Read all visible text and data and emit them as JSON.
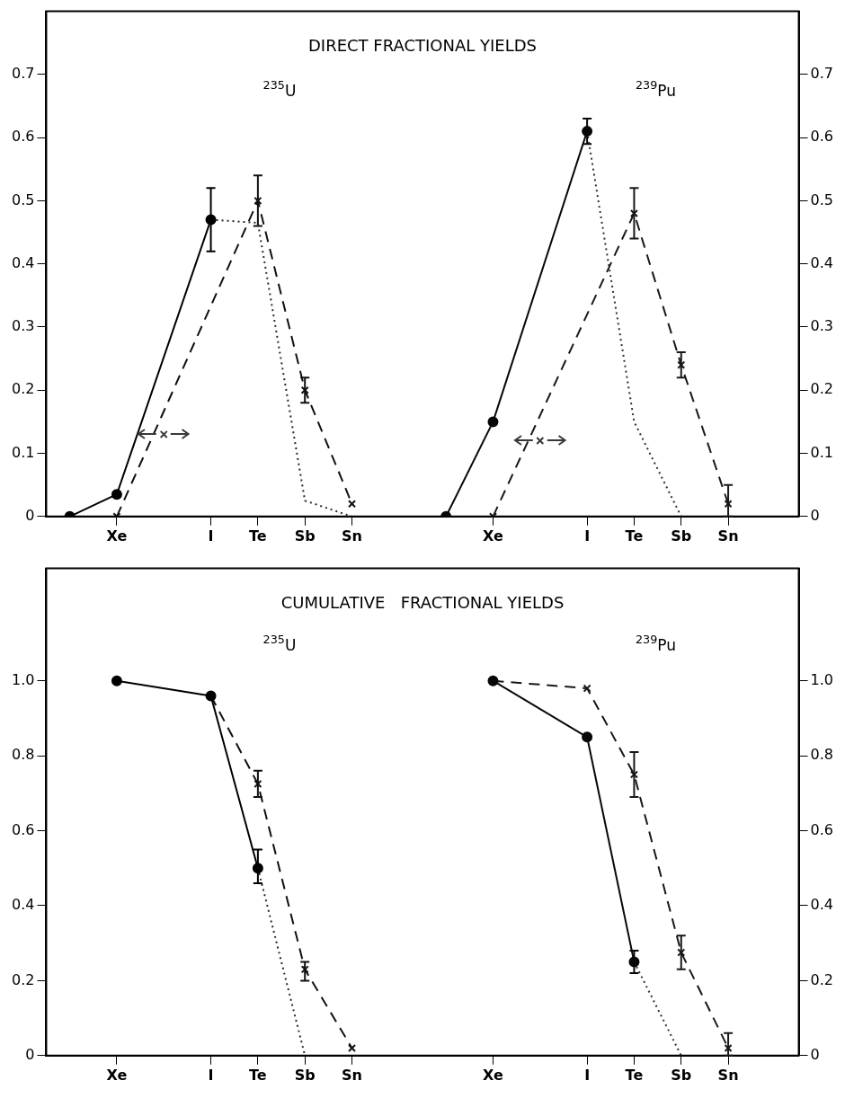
{
  "chart_data": [
    {
      "type": "line",
      "title": "DIRECT FRACTIONAL YIELDS",
      "categories": [
        null,
        "Xe",
        null,
        "I",
        "Te",
        "Sb",
        "Sn",
        null,
        null,
        "Xe",
        null,
        "I",
        "Te",
        "Sb",
        "Sn",
        null
      ],
      "ylim": [
        0,
        0.8
      ],
      "yticks": [
        0,
        0.1,
        0.2,
        0.3,
        0.4,
        0.5,
        0.6,
        0.7
      ],
      "y2lim": [
        0,
        0.8
      ],
      "y2ticks": [
        0,
        0.1,
        0.2,
        0.3,
        0.4,
        0.5,
        0.6,
        0.7
      ],
      "annotations": [
        "$^{235}$U",
        "$^{239}$Pu"
      ],
      "series": [
        {
          "type": "line",
          "color": "#000000",
          "line_style": "solid",
          "marker": "circle",
          "values": [
            0,
            0.035,
            null,
            0.47,
            null,
            null,
            null,
            null,
            null,
            null,
            null,
            null,
            null,
            null,
            null,
            null
          ],
          "errors": [
            null,
            null,
            null,
            [
              0.42,
              0.52
            ],
            null,
            null,
            null,
            null,
            null,
            null,
            null,
            null,
            null,
            null,
            null,
            null
          ]
        },
        {
          "type": "line",
          "color": "#282828",
          "line_style": "dotted",
          "marker": "none",
          "values": [
            null,
            null,
            null,
            0.47,
            0.465,
            0.025,
            0,
            null,
            null,
            null,
            null,
            null,
            null,
            null,
            null,
            null
          ]
        },
        {
          "type": "line",
          "color": "#101010",
          "line_style": "dashed",
          "marker": "cross",
          "values": [
            null,
            0,
            null,
            null,
            0.5,
            0.2,
            0.02,
            null,
            null,
            null,
            null,
            null,
            null,
            null,
            null,
            null
          ],
          "errors": [
            null,
            null,
            null,
            null,
            [
              0.46,
              0.54
            ],
            [
              0.18,
              0.22
            ],
            null,
            null,
            null,
            null,
            null,
            null,
            null,
            null,
            null,
            null
          ]
        },
        {
          "type": "scatter",
          "color": "#383838",
          "marker": "cross",
          "values": [
            null,
            null,
            0.13,
            null,
            null,
            null,
            null,
            null,
            null,
            null,
            0.12,
            null,
            null,
            null,
            null,
            null
          ]
        },
        {
          "type": "line",
          "color": "#080808",
          "line_style": "solid",
          "marker": "circle",
          "values": [
            null,
            null,
            null,
            null,
            null,
            null,
            null,
            null,
            0,
            0.15,
            null,
            0.61,
            null,
            null,
            null,
            null
          ],
          "errors": [
            null,
            null,
            null,
            null,
            null,
            null,
            null,
            null,
            null,
            null,
            null,
            [
              0.59,
              0.63
            ],
            null,
            null,
            null,
            null
          ]
        },
        {
          "type": "line",
          "color": "#303030",
          "line_style": "dotted",
          "marker": "none",
          "values": [
            null,
            null,
            null,
            null,
            null,
            null,
            null,
            null,
            null,
            null,
            null,
            0.61,
            0.15,
            0,
            null,
            null
          ]
        },
        {
          "type": "line",
          "color": "#181818",
          "line_style": "dashed",
          "marker": "cross",
          "values": [
            null,
            null,
            null,
            null,
            null,
            null,
            null,
            null,
            null,
            0,
            null,
            null,
            0.48,
            0.24,
            0.02,
            null
          ],
          "errors": [
            null,
            null,
            null,
            null,
            null,
            null,
            null,
            null,
            null,
            null,
            null,
            null,
            [
              0.44,
              0.52
            ],
            [
              0.22,
              0.26
            ],
            [
              0,
              0.05
            ],
            null
          ]
        }
      ]
    },
    {
      "type": "line",
      "title": "CUMULATIVE   FRACTIONAL YIELDS",
      "categories": [
        null,
        "Xe",
        null,
        "I",
        "Te",
        "Sb",
        "Sn",
        null,
        null,
        "Xe",
        null,
        "I",
        "Te",
        "Sb",
        "Sn",
        null
      ],
      "ylim": [
        0,
        1.3
      ],
      "yticks": [
        0,
        0.2,
        0.4,
        0.6,
        0.8,
        {
          "value": 1,
          "label": "1.0"
        }
      ],
      "y2lim": [
        0,
        1.3
      ],
      "y2ticks": [
        0,
        0.2,
        0.4,
        0.6,
        0.8,
        {
          "value": 1,
          "label": "1.0"
        }
      ],
      "annotations": [
        "$^{235}$U",
        "$^{239}$Pu"
      ],
      "series": [
        {
          "type": "line",
          "color": "#000000",
          "line_style": "solid",
          "marker": "circle",
          "values": [
            null,
            1.0,
            null,
            0.96,
            0.5,
            null,
            null,
            null,
            null,
            null,
            null,
            null,
            null,
            null,
            null,
            null
          ],
          "errors": [
            null,
            null,
            null,
            null,
            [
              0.46,
              0.55
            ],
            null,
            null,
            null,
            null,
            null,
            null,
            null,
            null,
            null,
            null,
            null
          ]
        },
        {
          "type": "line",
          "color": "#282828",
          "line_style": "dotted",
          "marker": "none",
          "values": [
            null,
            null,
            null,
            null,
            0.5,
            0,
            null,
            null,
            null,
            null,
            null,
            null,
            null,
            null,
            null,
            null
          ]
        },
        {
          "type": "line",
          "color": "#101010",
          "line_style": "dashed",
          "marker": "cross",
          "values": [
            null,
            null,
            null,
            0.96,
            0.725,
            0.23,
            0.02,
            null,
            null,
            null,
            null,
            null,
            null,
            null,
            null,
            null
          ],
          "errors": [
            null,
            null,
            null,
            null,
            [
              0.69,
              0.76
            ],
            [
              0.2,
              0.25
            ],
            null,
            null,
            null,
            null,
            null,
            null,
            null,
            null,
            null,
            null
          ]
        },
        {
          "type": "line",
          "color": "#080808",
          "line_style": "solid",
          "marker": "circle",
          "values": [
            null,
            null,
            null,
            null,
            null,
            null,
            null,
            null,
            null,
            1.0,
            null,
            0.85,
            0.25,
            null,
            null,
            null
          ],
          "errors": [
            null,
            null,
            null,
            null,
            null,
            null,
            null,
            null,
            null,
            null,
            null,
            null,
            [
              0.22,
              0.28
            ],
            null,
            null,
            null
          ]
        },
        {
          "type": "line",
          "color": "#303030",
          "line_style": "dotted",
          "marker": "none",
          "values": [
            null,
            null,
            null,
            null,
            null,
            null,
            null,
            null,
            null,
            null,
            null,
            null,
            0.25,
            0,
            null,
            null
          ]
        },
        {
          "type": "line",
          "color": "#181818",
          "line_style": "dashed",
          "marker": "cross",
          "values": [
            null,
            null,
            null,
            null,
            null,
            null,
            null,
            null,
            null,
            1.0,
            null,
            0.98,
            0.75,
            0.275,
            0.02,
            null
          ],
          "errors": [
            null,
            null,
            null,
            null,
            null,
            null,
            null,
            null,
            null,
            null,
            null,
            null,
            [
              0.69,
              0.81
            ],
            [
              0.23,
              0.32
            ],
            [
              0,
              0.06
            ],
            null
          ]
        }
      ]
    }
  ]
}
